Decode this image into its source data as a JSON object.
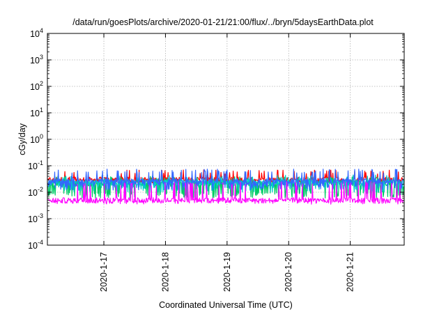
{
  "chart_data": {
    "type": "line",
    "title": "/data/run/goesPlots/archive/2020-01-21/21:00/flux/../bryn/5daysEarthData.plot",
    "xlabel": "Coordinated Universal Time (UTC)",
    "ylabel": "cGy/day",
    "yscale": "log",
    "ylim": [
      0.0001,
      10000
    ],
    "y_ticks": [
      {
        "value": 0.0001,
        "base": "10",
        "exp": "-4"
      },
      {
        "value": 0.001,
        "base": "10",
        "exp": "-3"
      },
      {
        "value": 0.01,
        "base": "10",
        "exp": "-2"
      },
      {
        "value": 0.1,
        "base": "10",
        "exp": "-1"
      },
      {
        "value": 1,
        "base": "10",
        "exp": "0"
      },
      {
        "value": 10,
        "base": "10",
        "exp": "1"
      },
      {
        "value": 100,
        "base": "10",
        "exp": "2"
      },
      {
        "value": 1000,
        "base": "10",
        "exp": "3"
      },
      {
        "value": 10000,
        "base": "10",
        "exp": "4"
      }
    ],
    "xlim": [
      "2020-01-16T02:00",
      "2020-01-21T21:00"
    ],
    "x_ticks": [
      {
        "value": "2020-01-17T00:00",
        "label": "2020-1-17"
      },
      {
        "value": "2020-01-18T00:00",
        "label": "2020-1-18"
      },
      {
        "value": "2020-01-19T00:00",
        "label": "2020-1-19"
      },
      {
        "value": "2020-01-20T00:00",
        "label": "2020-1-20"
      },
      {
        "value": "2020-01-21T00:00",
        "label": "2020-1-21"
      }
    ],
    "grid": true,
    "series": [
      {
        "color": "#ff0000",
        "base": 0.03,
        "peak": 0.07,
        "low": 0.02
      },
      {
        "color": "#00cc66",
        "base": 0.022,
        "peak": 0.04,
        "low": 0.006
      },
      {
        "color": "#00cccc",
        "base": 0.024,
        "peak": 0.045,
        "low": 0.01
      },
      {
        "color": "#3366ff",
        "base": 0.026,
        "peak": 0.075,
        "low": 0.012
      },
      {
        "color": "#ff00ff",
        "base": 0.005,
        "peak": 0.025,
        "low": 0.0035
      }
    ]
  }
}
